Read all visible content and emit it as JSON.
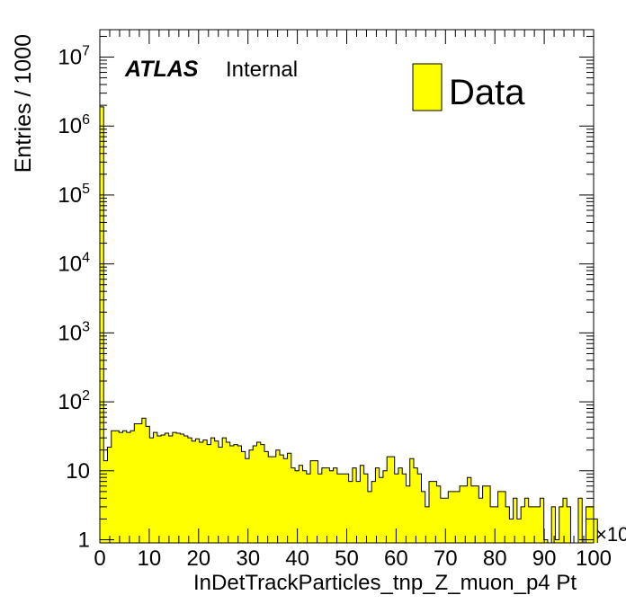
{
  "chart_data": {
    "type": "bar",
    "style": "histogram",
    "experiment_label": "ATLAS",
    "experiment_status": "Internal",
    "xlabel": "InDetTrackParticles_tnp_Z_muon_p4 Pt",
    "ylabel": "Entries / 1000",
    "x_multiplier_label": "×10",
    "xlim": [
      0,
      100
    ],
    "ylim": [
      0.9,
      25000000
    ],
    "yscale": "log",
    "x_tick_labels": [
      "0",
      "10",
      "20",
      "30",
      "40",
      "50",
      "60",
      "70",
      "80",
      "90",
      "100"
    ],
    "y_tick_labels": [
      {
        "value": 1,
        "base": "1",
        "exp": ""
      },
      {
        "value": 10,
        "base": "10",
        "exp": ""
      },
      {
        "value": 100,
        "base": "10",
        "exp": "2"
      },
      {
        "value": 1000,
        "base": "10",
        "exp": "3"
      },
      {
        "value": 10000,
        "base": "10",
        "exp": "4"
      },
      {
        "value": 100000,
        "base": "10",
        "exp": "5"
      },
      {
        "value": 1000000,
        "base": "10",
        "exp": "6"
      },
      {
        "value": 10000000,
        "base": "10",
        "exp": "7"
      }
    ],
    "legend": {
      "position": "top-right",
      "entries": [
        "Data"
      ]
    },
    "bin_width": 1,
    "series": [
      {
        "name": "Data",
        "color": "#ffff00",
        "values": [
          1900000,
          14,
          22,
          38,
          38,
          36,
          38,
          36,
          38,
          48,
          48,
          58,
          44,
          30,
          36,
          32,
          33,
          35,
          32,
          36,
          35,
          34,
          32,
          30,
          27,
          29,
          26,
          28,
          24,
          30,
          27,
          22,
          30,
          26,
          23,
          24,
          23,
          19,
          15,
          20,
          23,
          26,
          24,
          19,
          16,
          16,
          20,
          17,
          15,
          18,
          11,
          10,
          12,
          10,
          9,
          14,
          14,
          9,
          11,
          11,
          10,
          11,
          9,
          9,
          9,
          7,
          11,
          7,
          12,
          9,
          5,
          7,
          11,
          8,
          10,
          16,
          16,
          9,
          11,
          9,
          6,
          15,
          11,
          9,
          5,
          3,
          7,
          7,
          6,
          4,
          4,
          5,
          5,
          5,
          6,
          6,
          8,
          6,
          6,
          4,
          6,
          6,
          3,
          3,
          5,
          5,
          3,
          2,
          4,
          2,
          3,
          4,
          3,
          3,
          3,
          4,
          1,
          0.7,
          3,
          1,
          3,
          4,
          3,
          0.7,
          0.7,
          4,
          0.7,
          3,
          3,
          2
        ]
      }
    ]
  }
}
